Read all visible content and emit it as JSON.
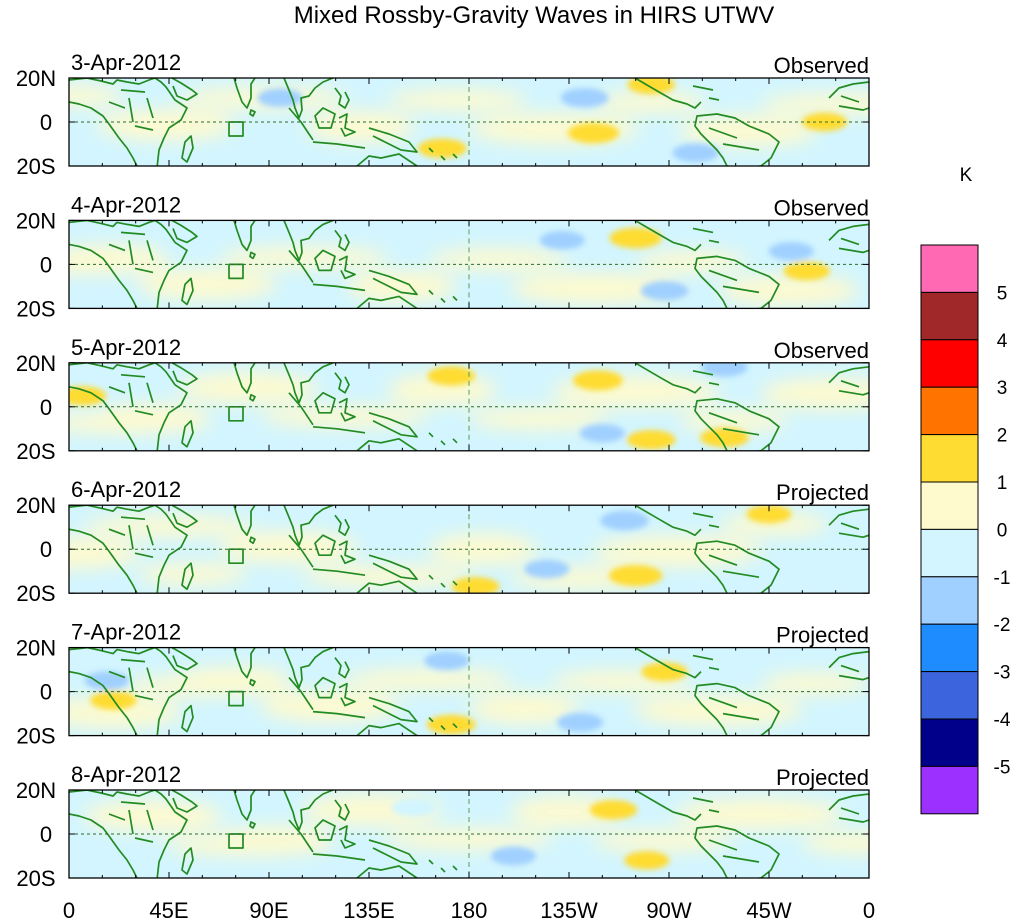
{
  "chart_data": {
    "type": "heatmap",
    "title": "Mixed Rossby-Gravity Waves in HIRS UTWV",
    "xlabel": "",
    "ylabel": "",
    "xlim": [
      0,
      360
    ],
    "ylim": [
      -20,
      20
    ],
    "x_ticks": [
      "0",
      "45E",
      "90E",
      "135E",
      "180",
      "135W",
      "90W",
      "45W",
      "0"
    ],
    "y_ticks": [
      "20N",
      "0",
      "20S"
    ],
    "colorbar": {
      "unit": "K",
      "colors": [
        "#9b30ff",
        "#00008b",
        "#3c64dc",
        "#1e8cff",
        "#a0d0ff",
        "#d2f5ff",
        "#fffacd",
        "#ffdc32",
        "#ff7300",
        "#ff0000",
        "#a02828",
        "#ff69b4"
      ],
      "tick_labels": [
        "-5",
        "-4",
        "-3",
        "-2",
        "-1",
        "0",
        "1",
        "2",
        "3",
        "4",
        "5"
      ]
    },
    "panels": [
      {
        "date": "3-Apr-2012",
        "status": "Observed",
        "anomalies": [
          {
            "lon": 168,
            "lat": -12,
            "value": 1.4
          },
          {
            "lon": 236,
            "lat": -5,
            "value": 1.6
          },
          {
            "lon": 262,
            "lat": 17,
            "value": 1.3
          },
          {
            "lon": 232,
            "lat": 11,
            "value": -1.3
          },
          {
            "lon": 282,
            "lat": -14,
            "value": -1.2
          },
          {
            "lon": 95,
            "lat": 11,
            "value": -1.1
          },
          {
            "lon": 340,
            "lat": 0,
            "value": 1.1
          }
        ]
      },
      {
        "date": "4-Apr-2012",
        "status": "Observed",
        "anomalies": [
          {
            "lon": 255,
            "lat": 12,
            "value": 1.7
          },
          {
            "lon": 268,
            "lat": -12,
            "value": -1.3
          },
          {
            "lon": 222,
            "lat": 11,
            "value": -1.1
          },
          {
            "lon": 325,
            "lat": 6,
            "value": -1.1
          },
          {
            "lon": 332,
            "lat": -3,
            "value": 1.2
          }
        ]
      },
      {
        "date": "5-Apr-2012",
        "status": "Observed",
        "anomalies": [
          {
            "lon": 238,
            "lat": 12,
            "value": 1.5
          },
          {
            "lon": 172,
            "lat": 14,
            "value": 1.3
          },
          {
            "lon": 295,
            "lat": -14,
            "value": 1.4
          },
          {
            "lon": 262,
            "lat": -15,
            "value": 1.4
          },
          {
            "lon": 6,
            "lat": 5,
            "value": 1.3
          },
          {
            "lon": 240,
            "lat": -12,
            "value": -1.1
          },
          {
            "lon": 295,
            "lat": 18,
            "value": -1.2
          }
        ]
      },
      {
        "date": "6-Apr-2012",
        "status": "Projected",
        "anomalies": [
          {
            "lon": 250,
            "lat": 13,
            "value": -1.4
          },
          {
            "lon": 255,
            "lat": -12,
            "value": 1.8
          },
          {
            "lon": 183,
            "lat": -17,
            "value": 1.3
          },
          {
            "lon": 315,
            "lat": 16,
            "value": 1.1
          },
          {
            "lon": 215,
            "lat": -9,
            "value": -1.1
          }
        ]
      },
      {
        "date": "7-Apr-2012",
        "status": "Projected",
        "anomalies": [
          {
            "lon": 172,
            "lat": -15,
            "value": 1.4
          },
          {
            "lon": 230,
            "lat": -14,
            "value": -1.2
          },
          {
            "lon": 268,
            "lat": 9,
            "value": 1.2
          },
          {
            "lon": 20,
            "lat": -4,
            "value": 1.2
          },
          {
            "lon": 170,
            "lat": 14,
            "value": -1.1
          },
          {
            "lon": 17,
            "lat": 5,
            "value": -1.1
          }
        ]
      },
      {
        "date": "8-Apr-2012",
        "status": "Projected",
        "anomalies": [
          {
            "lon": 245,
            "lat": 11,
            "value": 1.3
          },
          {
            "lon": 260,
            "lat": -12,
            "value": 1.1
          },
          {
            "lon": 200,
            "lat": -10,
            "value": -1.1
          },
          {
            "lon": 155,
            "lat": 12,
            "value": -1.0
          }
        ]
      }
    ]
  }
}
